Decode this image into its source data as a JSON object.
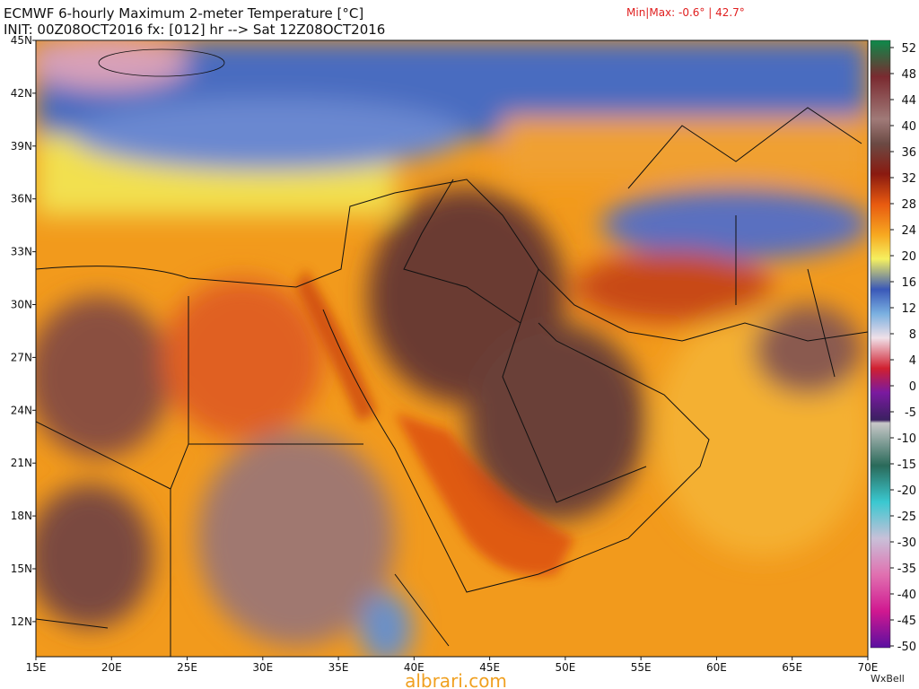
{
  "header": {
    "title": "ECMWF 6-hourly Maximum 2-meter Temperature [°C]",
    "init": "INIT: 00Z08OCT2016 fx: [012] hr --> Sat 12Z08OCT2016",
    "minmax": "Min|Max: -0.6° | 42.7°"
  },
  "lat_labels": [
    "45N",
    "42N",
    "39N",
    "36N",
    "33N",
    "30N",
    "27N",
    "24N",
    "21N",
    "18N",
    "15N",
    "12N"
  ],
  "lon_labels": [
    "15E",
    "20E",
    "25E",
    "30E",
    "35E",
    "40E",
    "45E",
    "50E",
    "55E",
    "60E",
    "65E",
    "70E"
  ],
  "colorbar_labels": [
    52,
    48,
    44,
    40,
    36,
    32,
    28,
    24,
    20,
    16,
    12,
    8,
    4,
    0,
    -5,
    -10,
    -15,
    -20,
    -25,
    -30,
    -35,
    -40,
    -45,
    -50
  ],
  "watermark": "albrari.com",
  "credit": "WxBell"
}
